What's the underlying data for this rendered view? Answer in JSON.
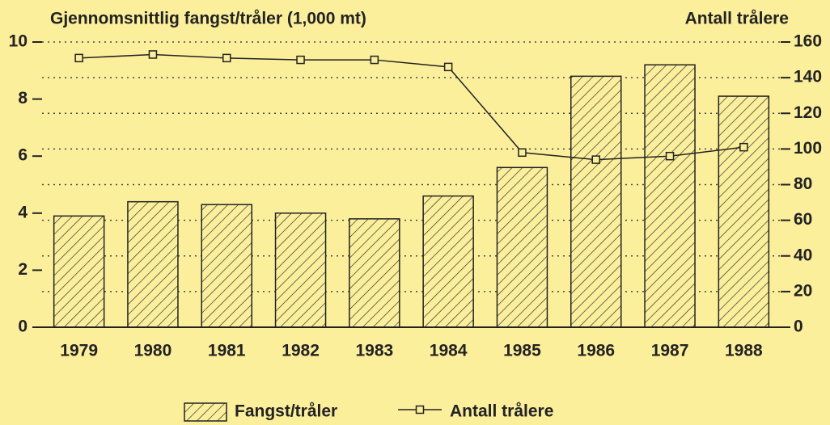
{
  "chart_data": {
    "type": "bar_line",
    "y_label": "Gjennomsnittlig fangst/tråler (1,000 mt)",
    "y2_label": "Antall trålere",
    "categories": [
      "1979",
      "1980",
      "1981",
      "1982",
      "1983",
      "1984",
      "1985",
      "1986",
      "1987",
      "1988"
    ],
    "series": [
      {
        "name": "Fangst/tråler",
        "type": "bar",
        "color": "#222222",
        "values": [
          3.9,
          4.4,
          4.3,
          4.0,
          3.8,
          4.6,
          5.6,
          8.8,
          9.2,
          8.1
        ]
      },
      {
        "name": "Antall trålere",
        "type": "line",
        "axis": "y2",
        "color": "#222222",
        "values": [
          151,
          153,
          151,
          150,
          150,
          146,
          98,
          94,
          96,
          101
        ]
      }
    ],
    "ylim": [
      0,
      10
    ],
    "yticks": [
      0,
      2,
      4,
      6,
      8,
      10
    ],
    "y2lim": [
      0,
      160
    ],
    "y2ticks": [
      0,
      20,
      40,
      60,
      80,
      100,
      120,
      140,
      160
    ],
    "grid": true,
    "legend": "bottom"
  }
}
